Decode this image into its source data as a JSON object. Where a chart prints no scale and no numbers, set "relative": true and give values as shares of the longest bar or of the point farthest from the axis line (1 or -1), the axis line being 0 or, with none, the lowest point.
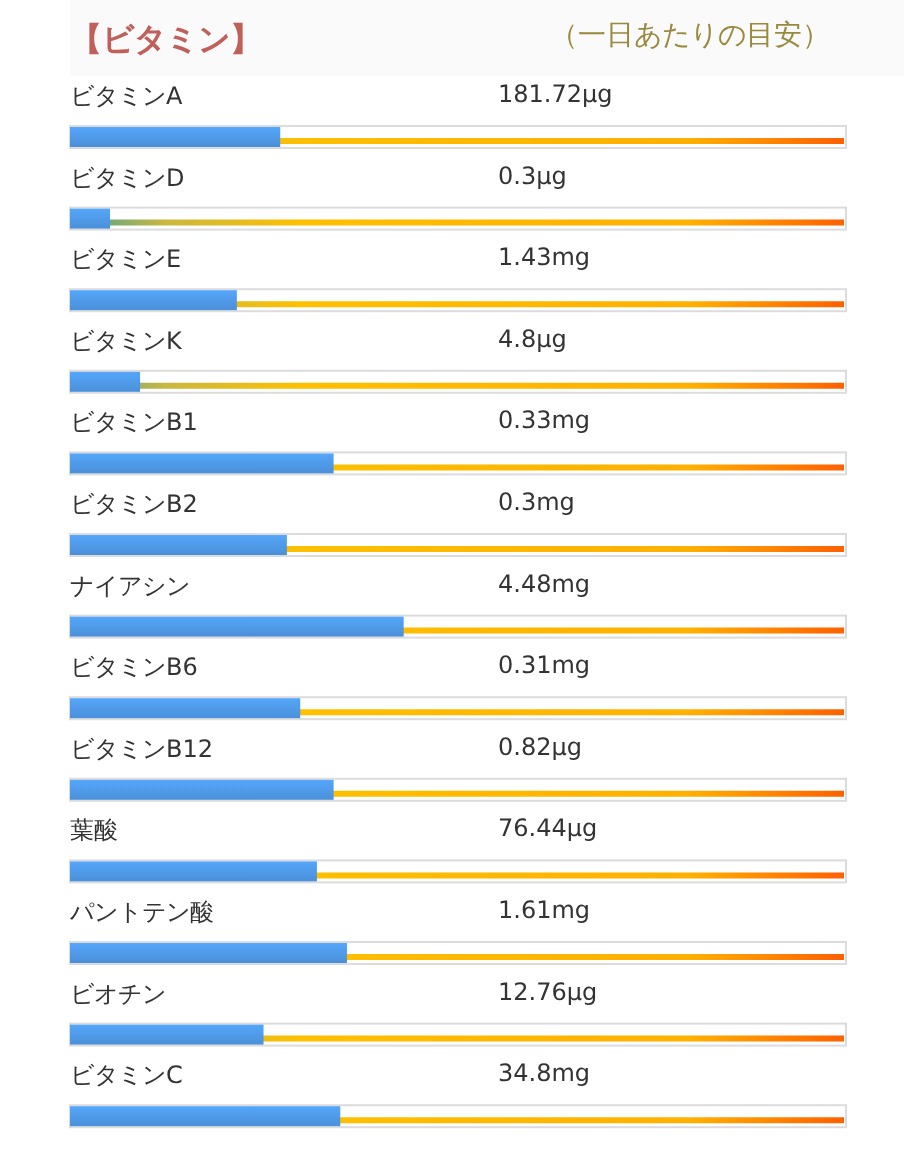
{
  "chart_data": {
    "type": "bar",
    "orientation": "horizontal",
    "relative": true,
    "title": "【ビタミン】",
    "subtitle": "（一日あたりの目安）",
    "categories": [
      "ビタミンA",
      "ビタミンD",
      "ビタミンE",
      "ビタミンK",
      "ビタミンB1",
      "ビタミンB2",
      "ナイアシン",
      "ビタミンB6",
      "ビタミンB12",
      "葉酸",
      "パントテン酸",
      "ビオチン",
      "ビタミンC"
    ],
    "values": [
      0.63,
      0.12,
      0.5,
      0.21,
      0.79,
      0.65,
      1,
      0.69,
      0.79,
      0.74,
      0.83,
      0.58,
      0.81
    ],
    "annotations": [
      "181.72μg",
      "0.3μg",
      "1.43mg",
      "4.8μg",
      "0.33mg",
      "0.3mg",
      "4.48mg",
      "0.31mg",
      "0.82μg",
      "76.44μg",
      "1.61mg",
      "12.76μg",
      "34.8mg"
    ],
    "color": "#4a90d9"
  }
}
